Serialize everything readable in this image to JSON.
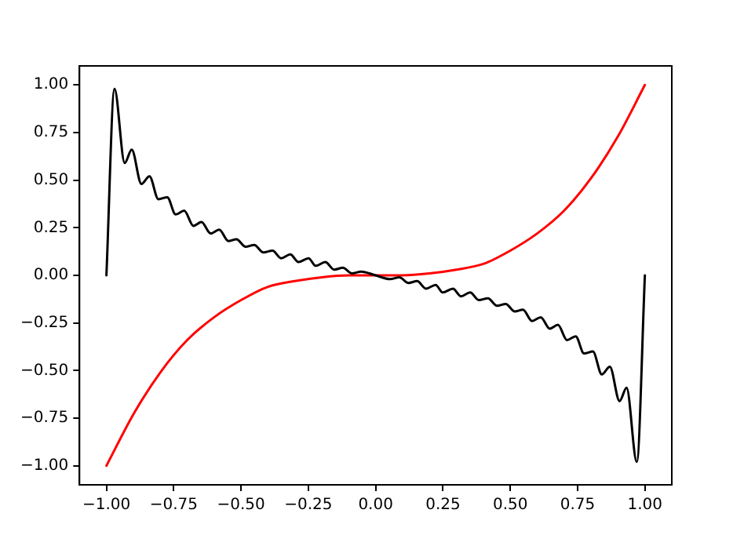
{
  "chart_data": {
    "type": "line",
    "xlim": [
      -1.1,
      1.1
    ],
    "ylim": [
      -1.1,
      1.1
    ],
    "xticks": [
      {
        "value": -1,
        "label": "−1.00"
      },
      {
        "value": -0.75,
        "label": "−0.75"
      },
      {
        "value": -0.5,
        "label": "−0.50"
      },
      {
        "value": -0.25,
        "label": "−0.25"
      },
      {
        "value": 0,
        "label": "0.00"
      },
      {
        "value": 0.25,
        "label": "0.25"
      },
      {
        "value": 0.5,
        "label": "0.50"
      },
      {
        "value": 0.75,
        "label": "0.75"
      },
      {
        "value": 1,
        "label": "1.00"
      }
    ],
    "yticks": [
      {
        "value": -1,
        "label": "−1.00"
      },
      {
        "value": -0.75,
        "label": "−0.75"
      },
      {
        "value": -0.5,
        "label": "−0.50"
      },
      {
        "value": -0.25,
        "label": "−0.25"
      },
      {
        "value": 0,
        "label": "0.00"
      },
      {
        "value": 0.25,
        "label": "0.25"
      },
      {
        "value": 0.5,
        "label": "0.50"
      },
      {
        "value": 0.75,
        "label": "0.75"
      },
      {
        "value": 1,
        "label": "1.00"
      }
    ],
    "grid": false,
    "legend": false,
    "marker": "none",
    "line_style": "solid",
    "series": [
      {
        "color": "#000000",
        "x": [
          -1,
          -0.97,
          -0.932,
          -0.906,
          -0.87,
          -0.84,
          -0.807,
          -0.774,
          -0.743,
          -0.711,
          -0.677,
          -0.647,
          -0.613,
          -0.581,
          -0.547,
          -0.517,
          -0.483,
          -0.451,
          -0.417,
          -0.383,
          -0.351,
          -0.317,
          -0.287,
          -0.249,
          -0.223,
          -0.187,
          -0.154,
          -0.122,
          -0.088,
          -0.054,
          0,
          0.054,
          0.088,
          0.122,
          0.154,
          0.187,
          0.223,
          0.249,
          0.287,
          0.317,
          0.351,
          0.383,
          0.417,
          0.451,
          0.483,
          0.517,
          0.547,
          0.581,
          0.613,
          0.647,
          0.677,
          0.711,
          0.743,
          0.774,
          0.807,
          0.84,
          0.87,
          0.906,
          0.932,
          0.97,
          1
        ],
        "values": [
          0,
          0.98,
          0.59,
          0.66,
          0.48,
          0.52,
          0.4,
          0.41,
          0.32,
          0.34,
          0.26,
          0.28,
          0.22,
          0.24,
          0.18,
          0.19,
          0.15,
          0.16,
          0.12,
          0.13,
          0.09,
          0.11,
          0.07,
          0.09,
          0.05,
          0.07,
          0.03,
          0.04,
          0.01,
          0.02,
          0,
          -0.02,
          -0.01,
          -0.04,
          -0.03,
          -0.07,
          -0.05,
          -0.09,
          -0.07,
          -0.11,
          -0.09,
          -0.13,
          -0.12,
          -0.16,
          -0.15,
          -0.19,
          -0.18,
          -0.24,
          -0.22,
          -0.28,
          -0.26,
          -0.34,
          -0.32,
          -0.41,
          -0.4,
          -0.52,
          -0.48,
          -0.66,
          -0.59,
          -0.98,
          0
        ]
      },
      {
        "color": "#ff0000",
        "x": [
          -1,
          -0.9,
          -0.8,
          -0.7,
          -0.6,
          -0.5,
          -0.4,
          -0.3,
          -0.2,
          -0.1,
          0,
          0.1,
          0.2,
          0.3,
          0.4,
          0.5,
          0.6,
          0.7,
          0.8,
          0.9,
          1
        ],
        "values": [
          -1,
          -0.73,
          -0.51,
          -0.34,
          -0.22,
          -0.13,
          -0.06,
          -0.03,
          -0.01,
          0,
          0,
          0,
          0.01,
          0.03,
          0.06,
          0.13,
          0.22,
          0.34,
          0.51,
          0.73,
          1
        ]
      }
    ]
  }
}
